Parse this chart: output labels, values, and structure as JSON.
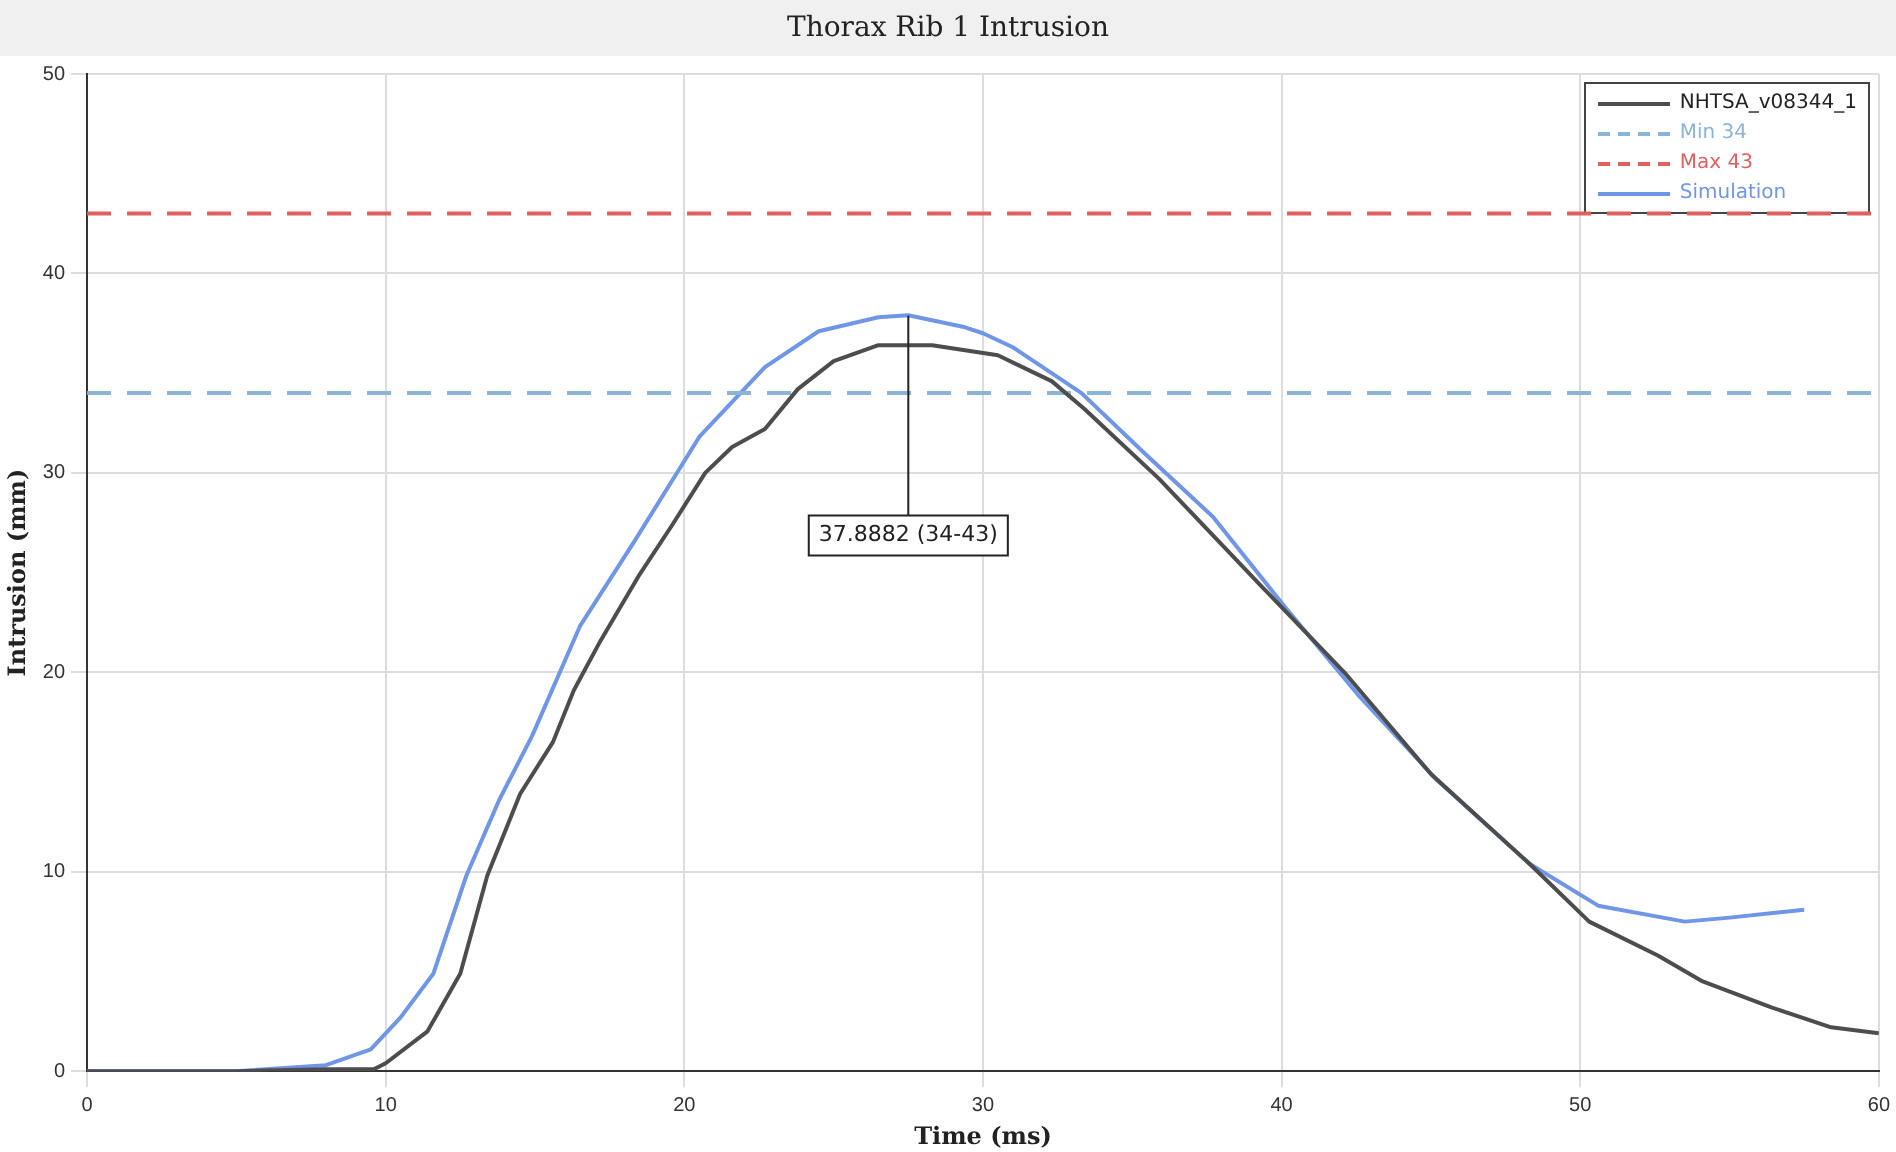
{
  "chart_data": {
    "type": "line",
    "title": "Thorax Rib 1 Intrusion",
    "xlabel": "Time (ms)",
    "ylabel": "Intrusion (mm)",
    "xlim": [
      0,
      60
    ],
    "xticks": [
      0,
      10,
      20,
      30,
      40,
      50,
      60
    ],
    "ylim": [
      0,
      50
    ],
    "yticks": [
      0,
      10,
      20,
      30,
      40,
      50
    ],
    "grid": true,
    "legend": "top right",
    "marker": "none",
    "series": [
      {
        "name": "NHTSA_v08344_1",
        "color": "#4d4d4d",
        "x": [
          0,
          5,
          8,
          9.6,
          10,
          11.4,
          12.5,
          13.4,
          14.5,
          15.6,
          16.3,
          17.2,
          18.5,
          19.6,
          20.7,
          21.6,
          22.7,
          23.8,
          25,
          26.5,
          28.3,
          30.5,
          31.6,
          32.3,
          33.4,
          35.9,
          39.4,
          42.1,
          45,
          48.3,
          50.3,
          52.6,
          54.1,
          56.4,
          58.4,
          60
        ],
        "values": [
          0,
          0,
          0.1,
          0.1,
          0.4,
          2,
          4.9,
          9.8,
          13.9,
          16.5,
          19.1,
          21.6,
          24.9,
          27.4,
          30,
          31.3,
          32.2,
          34.2,
          35.6,
          36.4,
          36.4,
          35.9,
          35.1,
          34.6,
          33.2,
          29.7,
          24.2,
          20,
          14.9,
          10.4,
          7.5,
          5.8,
          4.5,
          3.2,
          2.2,
          1.9
        ]
      },
      {
        "name": "Simulation",
        "color": "#7096e8",
        "x": [
          0,
          5,
          8,
          9.5,
          10.5,
          11.6,
          12.7,
          13.8,
          14.9,
          16.5,
          18.3,
          20.5,
          22.7,
          24.5,
          26.5,
          27.5,
          29.4,
          30,
          31,
          32.3,
          33.3,
          35.4,
          37.7,
          40.1,
          42.6,
          45.2,
          48.3,
          50.6,
          53.5,
          55,
          57.5
        ],
        "values": [
          0,
          0,
          0.3,
          1.1,
          2.7,
          4.9,
          9.8,
          13.6,
          16.8,
          22.3,
          26.5,
          31.8,
          35.3,
          37.1,
          37.8,
          37.9,
          37.3,
          37,
          36.3,
          35,
          34,
          31,
          27.8,
          23.3,
          18.8,
          14.6,
          10.4,
          8.3,
          7.5,
          7.7,
          8.1
        ]
      }
    ],
    "ref_lines": [
      {
        "axis": "y",
        "value": 34,
        "label": "Min 34",
        "color": "#8ab4d8",
        "line_style": "dashed"
      },
      {
        "axis": "y",
        "value": 43,
        "label": "Max 43",
        "color": "#e06060",
        "line_style": "dashed"
      }
    ],
    "annotations": [
      {
        "text": "37.8882 (34-43)",
        "x": 27.5,
        "y": 37.8882
      }
    ]
  }
}
